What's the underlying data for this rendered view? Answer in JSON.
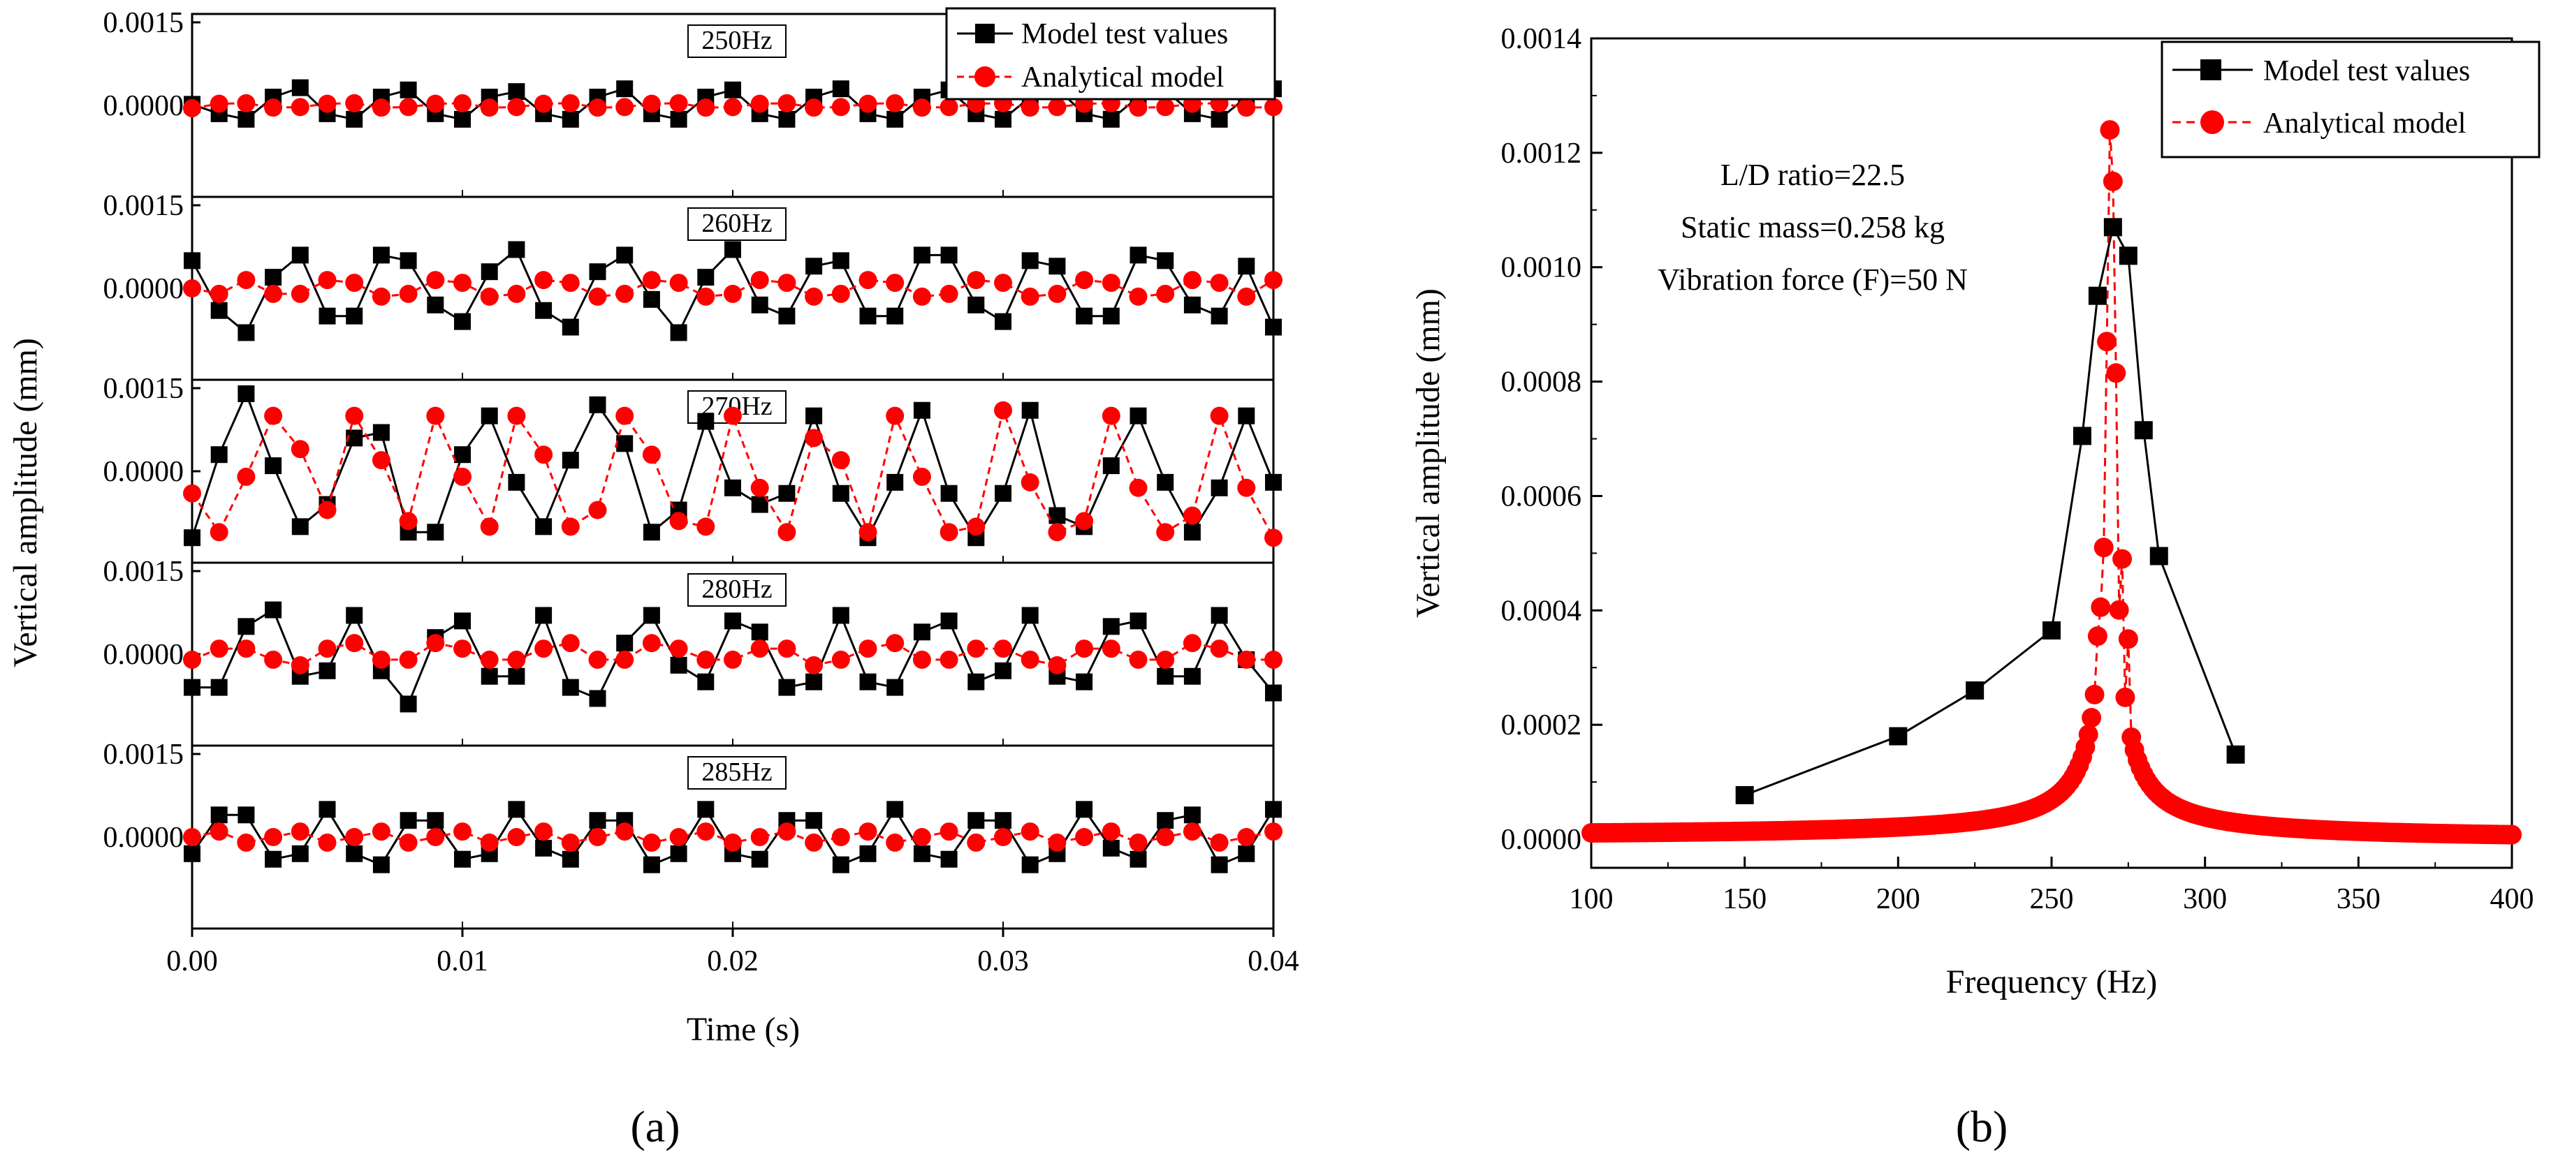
{
  "colors": {
    "black": "#000000",
    "red": "#ff0000"
  },
  "panel_labels": {
    "a": "(a)",
    "b": "(b)"
  },
  "chart_data": [
    {
      "type": "line",
      "title": "",
      "xlabel": "Time (s)",
      "ylabel": "Vertical amplitude (mm)",
      "xlim": [
        0,
        0.04
      ],
      "x_ticks": [
        "0.00",
        "0.01",
        "0.02",
        "0.03",
        "0.04"
      ],
      "y_tick_labels": [
        "0.0015",
        "0.0000"
      ],
      "legend": {
        "position": "top-right",
        "entries": [
          "Model test values",
          "Analytical model"
        ]
      },
      "subplots": [
        {
          "label": "250Hz",
          "ylim": [
            -0.0015,
            0.0015
          ],
          "series": [
            {
              "name": "Model test values",
              "color": "#000000",
              "marker": "square",
              "line": "solid",
              "y_e4": [
                0.2,
                -1.5,
                -2.5,
                1.5,
                3.2,
                -1.5,
                -2.5,
                1.5,
                2.8,
                -1.5,
                -2.5,
                1.5,
                2.5,
                -1.5,
                -2.5,
                1.5,
                3,
                -1.5,
                -2.5,
                1.5,
                2.8,
                -1.5,
                -2.5,
                1.5,
                3,
                -1.5,
                -2.5,
                1.5,
                2.8,
                -1.5,
                -2.5,
                1.5,
                3,
                -1.5,
                -2.5,
                1.5,
                2.8,
                -1.5,
                -2.5,
                1.5,
                3
              ]
            },
            {
              "name": "Analytical model",
              "color": "#ff0000",
              "marker": "circle",
              "line": "dashed",
              "y_e4": [
                -0.5,
                0.3,
                0.4,
                -0.4,
                -0.3,
                0.3,
                0.4,
                -0.4,
                -0.3,
                0.3,
                0.4,
                -0.4,
                -0.3,
                0.3,
                0.4,
                -0.4,
                -0.3,
                0.3,
                0.4,
                -0.4,
                -0.3,
                0.3,
                0.4,
                -0.4,
                -0.3,
                0.3,
                0.4,
                -0.4,
                -0.3,
                0.3,
                0.4,
                -0.4,
                -0.3,
                0.3,
                0.4,
                -0.4,
                -0.3,
                0.3,
                0.4,
                -0.4,
                -0.3
              ]
            }
          ]
        },
        {
          "label": "260Hz",
          "ylim": [
            -0.0015,
            0.0015
          ],
          "series": [
            {
              "name": "Model test values",
              "color": "#000000",
              "marker": "square",
              "line": "solid",
              "y_e4": [
                5,
                -4,
                -8,
                2,
                6,
                -5,
                -5,
                6,
                5,
                -3,
                -6,
                3,
                7,
                -4,
                -7,
                3,
                6,
                -2,
                -8,
                2,
                7,
                -3,
                -5,
                4,
                5,
                -5,
                -5,
                6,
                6,
                -3,
                -6,
                5,
                4,
                -5,
                -5,
                6,
                5,
                -3,
                -5,
                4,
                -7
              ]
            },
            {
              "name": "Analytical model",
              "color": "#ff0000",
              "marker": "circle",
              "line": "dashed",
              "y_e4": [
                0,
                -1,
                1.5,
                -1,
                -1,
                1.5,
                1,
                -1.5,
                -1,
                1.5,
                1,
                -1.5,
                -1,
                1.5,
                1,
                -1.5,
                -1,
                1.5,
                1,
                -1.5,
                -1,
                1.5,
                1,
                -1.5,
                -1,
                1.5,
                1,
                -1.5,
                -1,
                1.5,
                1,
                -1.5,
                -1,
                1.5,
                1,
                -1.5,
                -1,
                1.5,
                1,
                -1.5,
                1.5
              ]
            }
          ]
        },
        {
          "label": "270Hz",
          "ylim": [
            -0.0015,
            0.0015
          ],
          "series": [
            {
              "name": "Model test values",
              "color": "#000000",
              "marker": "square",
              "line": "solid",
              "y_e4": [
                -12,
                3,
                14,
                1,
                -10,
                -6,
                6,
                7,
                -11,
                -11,
                3,
                10,
                -2,
                -10,
                2,
                12,
                5,
                -11,
                -7,
                9,
                -3,
                -6,
                -4,
                10,
                -4,
                -12,
                -2,
                11,
                -4,
                -12,
                -4,
                11,
                -8,
                -10,
                1,
                10,
                -2,
                -11,
                -3,
                10,
                -2
              ]
            },
            {
              "name": "Analytical model",
              "color": "#ff0000",
              "marker": "circle",
              "line": "dashed",
              "y_e4": [
                -4,
                -11,
                -1,
                10,
                4,
                -7,
                10,
                2,
                -9,
                10,
                -1,
                -10,
                10,
                3,
                -10,
                -7,
                10,
                3,
                -9,
                -10,
                10,
                -3,
                -11,
                6,
                2,
                -11,
                10,
                -1,
                -11,
                -10,
                11,
                -2,
                -11,
                -9,
                10,
                -3,
                -11,
                -8,
                10,
                -3,
                -12
              ]
            }
          ]
        },
        {
          "label": "280Hz",
          "ylim": [
            -0.0015,
            0.0015
          ],
          "series": [
            {
              "name": "Model test values",
              "color": "#000000",
              "marker": "square",
              "line": "solid",
              "y_e4": [
                -6,
                -6,
                5,
                8,
                -4,
                -3,
                7,
                -3,
                -9,
                3,
                6,
                -4,
                -4,
                7,
                -6,
                -8,
                2,
                7,
                -2,
                -5,
                6,
                4,
                -6,
                -5,
                7,
                -5,
                -6,
                4,
                6,
                -5,
                -3,
                7,
                -4,
                -5,
                5,
                6,
                -4,
                -4,
                7,
                -1,
                -7
              ]
            },
            {
              "name": "Analytical model",
              "color": "#ff0000",
              "marker": "circle",
              "line": "dashed",
              "y_e4": [
                -1,
                1,
                1,
                -1,
                -2,
                1,
                2,
                -1,
                -1,
                2,
                1,
                -1,
                -1,
                1,
                2,
                -1,
                -1,
                2,
                1,
                -1,
                -1,
                1,
                1,
                -2,
                -1,
                1,
                2,
                -1,
                -1,
                1,
                1,
                -1,
                -2,
                1,
                1,
                -1,
                -1,
                2,
                1,
                -1,
                -1
              ]
            }
          ]
        },
        {
          "label": "285Hz",
          "ylim": [
            -0.0015,
            0.0015
          ],
          "series": [
            {
              "name": "Model test values",
              "color": "#000000",
              "marker": "square",
              "line": "solid",
              "y_e4": [
                -3,
                4,
                4,
                -4,
                -3,
                5,
                -3,
                -5,
                3,
                3,
                -4,
                -3,
                5,
                -2,
                -4,
                3,
                3,
                -5,
                -3,
                5,
                -3,
                -4,
                3,
                3,
                -5,
                -3,
                5,
                -3,
                -4,
                3,
                3,
                -5,
                -3,
                5,
                -2,
                -4,
                3,
                4,
                -5,
                -3,
                5
              ]
            },
            {
              "name": "Analytical model",
              "color": "#ff0000",
              "marker": "circle",
              "line": "dashed",
              "y_e4": [
                0,
                1,
                -1,
                0,
                1,
                -1,
                0,
                1,
                -1,
                0,
                1,
                -1,
                0,
                1,
                -1,
                0,
                1,
                -1,
                0,
                1,
                -1,
                0,
                1,
                -1,
                0,
                1,
                -1,
                0,
                1,
                -1,
                0,
                1,
                -1,
                0,
                1,
                -1,
                0,
                1,
                -1,
                0,
                1
              ]
            }
          ]
        }
      ]
    },
    {
      "type": "line",
      "title": "",
      "xlabel": "Frequency (Hz)",
      "ylabel": "Vertical amplitude (mm)",
      "xlim": [
        100,
        400
      ],
      "ylim": [
        -5e-05,
        0.0014
      ],
      "x_ticks": [
        "100",
        "150",
        "200",
        "250",
        "300",
        "350",
        "400"
      ],
      "y_ticks": [
        "0.0000",
        "0.0002",
        "0.0004",
        "0.0006",
        "0.0008",
        "0.0010",
        "0.0012",
        "0.0014"
      ],
      "legend": {
        "position": "top-right",
        "entries": [
          "Model test values",
          "Analytical model"
        ]
      },
      "annotations": [
        "L/D ratio=22.5",
        "Static mass=0.258 kg",
        "Vibration force (F)=50 N"
      ],
      "series": [
        {
          "name": "Model test values",
          "color": "#000000",
          "marker": "square",
          "line": "solid",
          "x": [
            150,
            200,
            225,
            250,
            260,
            265,
            270,
            275,
            280,
            285,
            310
          ],
          "y": [
            7.7e-05,
            0.00018,
            0.00026,
            0.000365,
            0.000705,
            0.00095,
            0.00107,
            0.00102,
            0.000715,
            0.000495,
            0.000148
          ]
        },
        {
          "name": "Analytical model",
          "color": "#ff0000",
          "marker": "circle",
          "line": "dashed",
          "resonance": {
            "f0_hz": 269,
            "peak": 0.00124,
            "base": 9.5e-06
          },
          "points_x": [
            265,
            267,
            268,
            269,
            270,
            271,
            273,
            275
          ],
          "points_y": [
            0.000355,
            0.00051,
            0.00087,
            0.00124,
            0.00115,
            0.000815,
            0.00049,
            0.00035
          ]
        }
      ]
    }
  ]
}
